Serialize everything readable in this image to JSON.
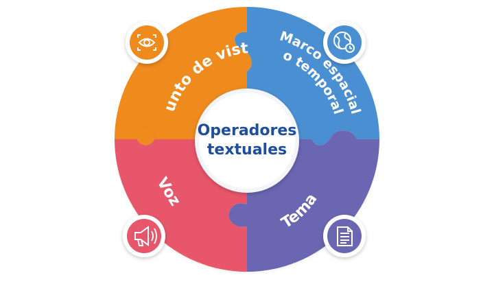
{
  "diagram": {
    "center": {
      "line1": "Operadores",
      "line2": "textuales",
      "color": "#1f4e9c"
    },
    "segments": [
      {
        "id": "punto-de-vista",
        "label": "Punto de vista",
        "color": "#ef8a1d",
        "icon": "eye-icon"
      },
      {
        "id": "marco",
        "label_line1": "Marco espacial",
        "label_line2": "o temporal",
        "color": "#4b8fd3",
        "icon": "globe-clock-icon"
      },
      {
        "id": "tema",
        "label": "Tema",
        "color": "#6b66b1",
        "icon": "document-icon"
      },
      {
        "id": "voz",
        "label": "Voz",
        "color": "#e8566b",
        "icon": "megaphone-icon"
      }
    ]
  }
}
